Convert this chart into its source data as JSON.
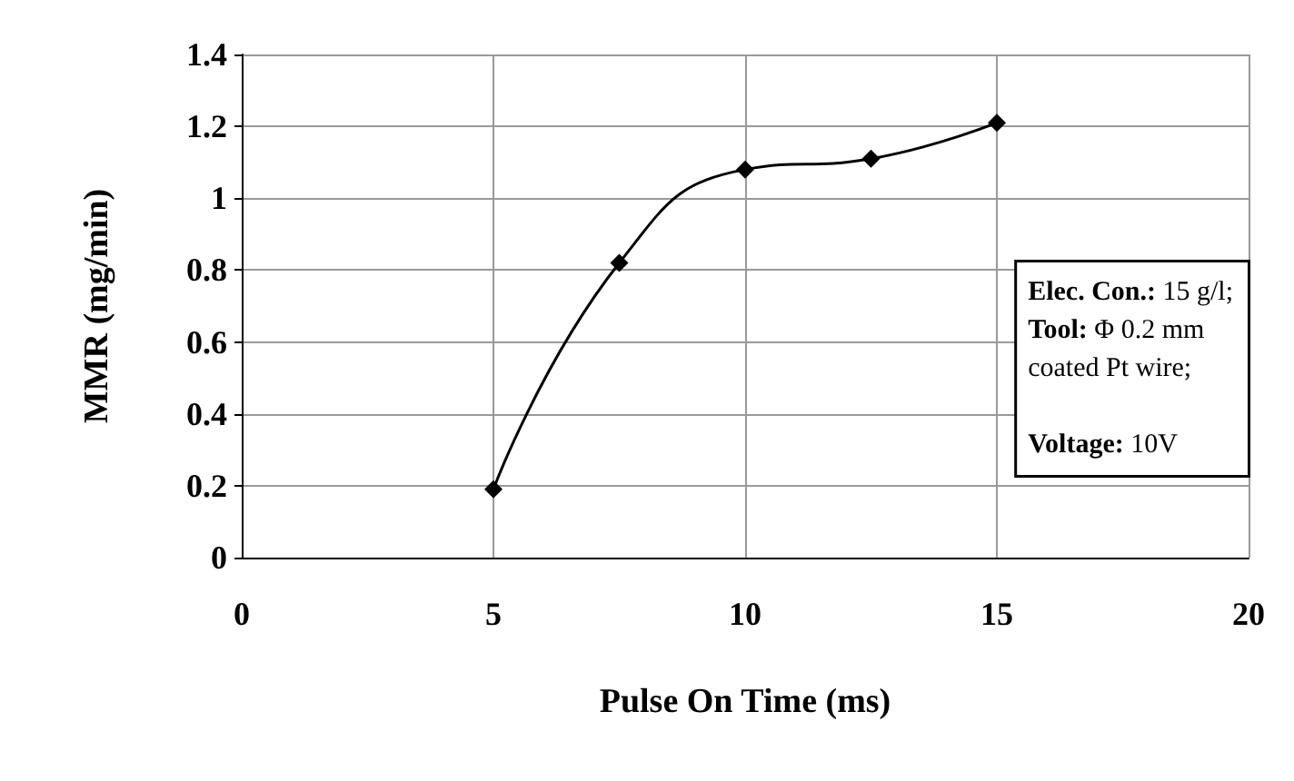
{
  "chart_data": {
    "type": "line",
    "xlabel": "Pulse On Time (ms)",
    "ylabel": "MMR (mg/min)",
    "x": [
      5,
      7.5,
      10,
      12.5,
      15
    ],
    "values": [
      0.19,
      0.82,
      1.08,
      1.11,
      1.21
    ],
    "color": "#000000",
    "marker": "diamond",
    "grid": true,
    "xlim": [
      0,
      20
    ],
    "xticks": [
      0,
      5,
      10,
      15,
      20
    ],
    "ylim": [
      0,
      1.4
    ],
    "yticks": [
      0,
      0.2,
      0.4,
      0.6,
      0.8,
      1,
      1.2,
      1.4
    ],
    "annotations": [
      "Elec. Con.: 15 g/l;\nTool: Φ 0.2 mm\ncoated Pt wire;\n\nVoltage: 10V"
    ]
  }
}
